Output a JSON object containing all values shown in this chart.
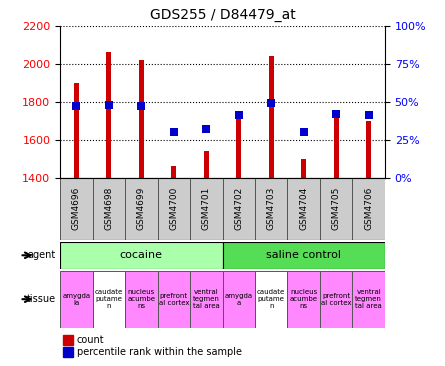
{
  "title": "GDS255 / D84479_at",
  "samples": [
    "GSM4696",
    "GSM4698",
    "GSM4699",
    "GSM4700",
    "GSM4701",
    "GSM4702",
    "GSM4703",
    "GSM4704",
    "GSM4705",
    "GSM4706"
  ],
  "counts": [
    1900,
    2060,
    2020,
    1460,
    1540,
    1720,
    2040,
    1500,
    1720,
    1700
  ],
  "percentiles": [
    47,
    48,
    47,
    30,
    32,
    41,
    49,
    30,
    42,
    41
  ],
  "ymin": 1400,
  "ymax": 2200,
  "yticks_left": [
    1400,
    1600,
    1800,
    2000,
    2200
  ],
  "right_yticks": [
    0,
    25,
    50,
    75,
    100
  ],
  "bar_color": "#cc0000",
  "dot_color": "#0000cc",
  "agent_groups": [
    {
      "label": "cocaine",
      "start": 0,
      "end": 5,
      "color": "#aaffaa"
    },
    {
      "label": "saline control",
      "start": 5,
      "end": 10,
      "color": "#55dd55"
    }
  ],
  "tissues": [
    {
      "label": "amygda\nla",
      "color": "#ff88ff"
    },
    {
      "label": "caudate\nputame\nn",
      "color": "#ffffff"
    },
    {
      "label": "nucleus\nacumbe\nns",
      "color": "#ff88ff"
    },
    {
      "label": "prefront\nal cortex",
      "color": "#ff88ff"
    },
    {
      "label": "ventral\ntegmen\ntal area",
      "color": "#ff88ff"
    },
    {
      "label": "amygda\na",
      "color": "#ff88ff"
    },
    {
      "label": "caudate\nputame\nn",
      "color": "#ffffff"
    },
    {
      "label": "nucleus\nacumbe\nns",
      "color": "#ff88ff"
    },
    {
      "label": "prefront\nal cortex",
      "color": "#ff88ff"
    },
    {
      "label": "ventral\ntegmen\ntal area",
      "color": "#ff88ff"
    }
  ],
  "bar_width": 0.15,
  "dot_size": 40,
  "background_color": "#ffffff",
  "title_fontsize": 10,
  "gsm_fontsize": 6.5,
  "tissue_fontsize": 5.0,
  "agent_fontsize": 8,
  "legend_fontsize": 7
}
